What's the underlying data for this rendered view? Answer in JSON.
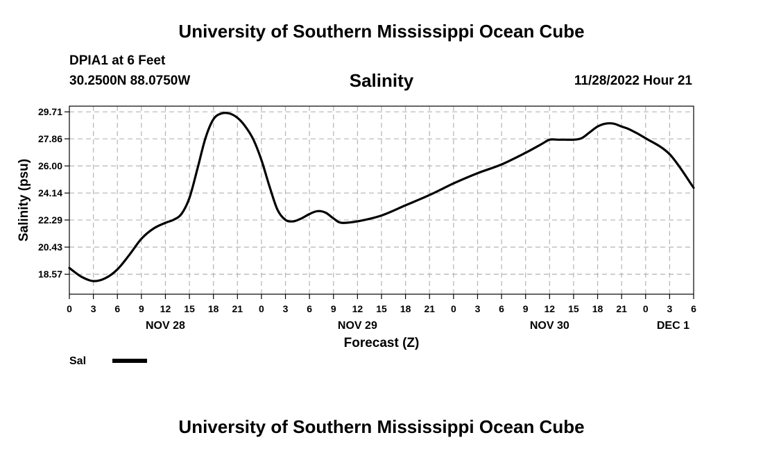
{
  "header": {
    "title": "University of Southern Mississippi Ocean Cube",
    "station": "DPIA1 at 6 Feet",
    "coordinates": "30.2500N  88.0750W",
    "parameter": "Salinity",
    "datetime": "11/28/2022 Hour 21"
  },
  "footer": {
    "title": "University of Southern Mississippi Ocean Cube"
  },
  "chart_data": {
    "type": "line",
    "title": "Salinity",
    "xlabel": "Forecast (Z)",
    "ylabel": "Salinity (psu)",
    "xlim": [
      0,
      78
    ],
    "ylim": [
      17.2,
      30.1
    ],
    "y_ticks": [
      "29.71",
      "27.86",
      "26.00",
      "24.14",
      "22.29",
      "20.43",
      "18.57"
    ],
    "x_ticks": [
      "0",
      "3",
      "6",
      "9",
      "12",
      "15",
      "18",
      "21",
      "0",
      "3",
      "6",
      "9",
      "12",
      "15",
      "18",
      "21",
      "0",
      "3",
      "6",
      "9",
      "12",
      "15",
      "18",
      "21",
      "0",
      "3",
      "6"
    ],
    "day_labels": [
      {
        "label": "NOV 28",
        "hour": 12
      },
      {
        "label": "NOV 29",
        "hour": 36
      },
      {
        "label": "NOV 30",
        "hour": 60
      },
      {
        "label": "DEC 1",
        "hour": 78
      }
    ],
    "grid": true,
    "legend": {
      "label": "Sal",
      "placement": "bottom-left"
    },
    "series": [
      {
        "name": "Sal",
        "x": [
          0,
          1.5,
          3,
          4.5,
          6,
          7.5,
          9,
          10.5,
          12,
          13,
          14,
          15,
          16,
          17,
          18,
          19,
          20,
          21,
          22,
          23,
          24,
          25,
          26,
          27,
          28,
          29,
          30,
          31,
          32,
          33,
          34,
          36,
          39,
          42,
          45,
          48,
          51,
          54,
          57,
          59,
          60,
          61,
          62,
          63,
          64,
          65,
          66,
          67,
          68,
          69,
          70,
          72,
          75,
          78
        ],
        "y": [
          19.0,
          18.4,
          18.1,
          18.3,
          18.9,
          19.9,
          21.0,
          21.7,
          22.1,
          22.3,
          22.7,
          23.8,
          25.8,
          27.9,
          29.2,
          29.6,
          29.6,
          29.3,
          28.7,
          27.8,
          26.4,
          24.6,
          23.0,
          22.3,
          22.2,
          22.4,
          22.7,
          22.9,
          22.8,
          22.4,
          22.1,
          22.2,
          22.6,
          23.3,
          24.0,
          24.8,
          25.5,
          26.1,
          26.9,
          27.5,
          27.8,
          27.8,
          27.8,
          27.8,
          27.9,
          28.3,
          28.7,
          28.9,
          28.9,
          28.7,
          28.5,
          27.9,
          26.8,
          24.5
        ]
      }
    ]
  }
}
